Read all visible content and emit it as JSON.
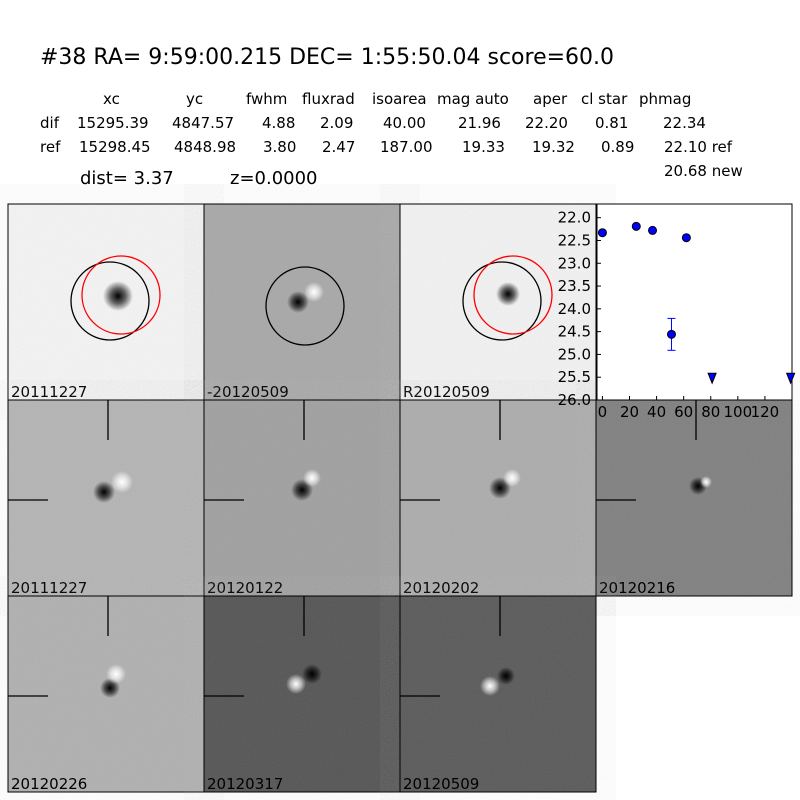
{
  "header": {
    "title": "#38   RA= 9:59:00.215 DEC= 1:55:50.04       score=60.0"
  },
  "table": {
    "columns": [
      "xc",
      "yc",
      "fwhm",
      "fluxrad",
      "isoarea",
      "mag auto",
      "aper",
      "cl star",
      "phmag"
    ],
    "rows": [
      [
        "dif",
        "15295.39",
        "4847.57",
        "4.88",
        "2.09",
        "40.00",
        "21.96",
        "22.20",
        "0.81",
        "22.34"
      ],
      [
        "ref",
        "15298.45",
        "4848.98",
        "3.80",
        "2.47",
        "187.00",
        "19.33",
        "19.32",
        "0.89",
        "22.10 ref"
      ]
    ],
    "dist": "dist=  3.37",
    "z": "z=0.0000",
    "new": "20.68 new"
  },
  "panels": [
    "20111227",
    "-20120509",
    "R20120509",
    "20111227",
    "20120122",
    "20120202",
    "20120216",
    "20120226",
    "20120317",
    "20120509"
  ],
  "lightcurve": {
    "type": "scatter",
    "x": [
      0,
      25,
      37,
      62,
      51,
      81,
      139
    ],
    "values": [
      22.33,
      22.19,
      22.28,
      22.44,
      24.56,
      25.5,
      25.5
    ],
    "errors": [
      null,
      null,
      null,
      null,
      0.35,
      null,
      null
    ],
    "upper_limit": [
      false,
      false,
      false,
      false,
      false,
      true,
      true
    ],
    "color": "#0000ff",
    "xlim": [
      -4,
      140
    ],
    "ylim": [
      26,
      21.7
    ],
    "xticks": [
      0,
      20,
      40,
      60,
      80,
      100,
      120
    ],
    "yticks": [
      {
        "value": 22,
        "label": "22.0"
      },
      {
        "value": 22.5,
        "label": "22.5"
      },
      {
        "value": 23,
        "label": "23.0"
      },
      {
        "value": 23.5,
        "label": "23.5"
      },
      {
        "value": 24,
        "label": "24.0"
      },
      {
        "value": 24.5,
        "label": "24.5"
      },
      {
        "value": 25,
        "label": "25.0"
      },
      {
        "value": 25.5,
        "label": "25.5"
      },
      {
        "value": 26,
        "label": "26.0"
      }
    ]
  }
}
